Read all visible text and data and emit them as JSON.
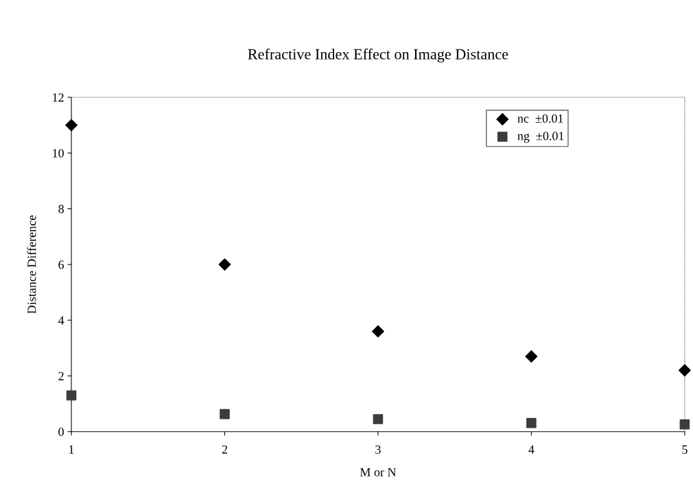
{
  "chart_data": {
    "type": "scatter",
    "title": "Refractive Index Effect on Image Distance",
    "xlabel": "M or N",
    "ylabel": "Distance Difference",
    "x": [
      1,
      2,
      3,
      4,
      5
    ],
    "series": [
      {
        "name": "nc  ±0.01",
        "color": "#000000",
        "marker": "diamond",
        "values": [
          11.0,
          6.0,
          3.6,
          2.7,
          2.2
        ]
      },
      {
        "name": "ng  ±0.01",
        "color": "#3c3c3c",
        "marker": "square",
        "values": [
          1.3,
          0.63,
          0.45,
          0.31,
          0.26
        ]
      }
    ],
    "xlim": [
      1,
      5
    ],
    "xticks": [
      1,
      2,
      3,
      4,
      5
    ],
    "ylim": [
      0,
      12
    ],
    "yticks": [
      0,
      2,
      4,
      6,
      8,
      10,
      12
    ],
    "grid": false,
    "legend": "top right"
  }
}
